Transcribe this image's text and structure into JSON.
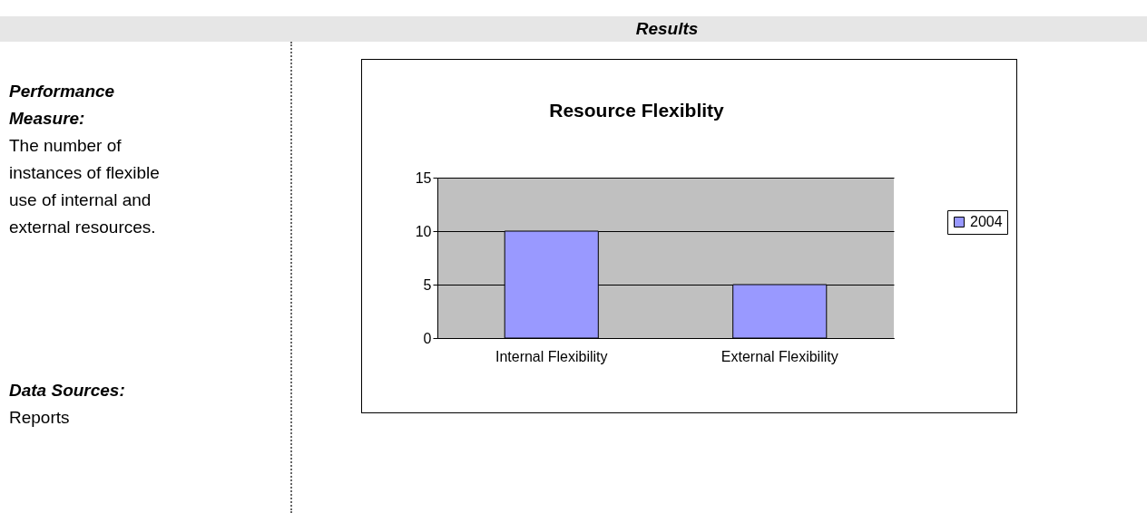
{
  "chart_data": {
    "type": "bar",
    "title": "Resource Flexiblity",
    "categories": [
      "Internal Flexibility",
      "External Flexibility"
    ],
    "series": [
      {
        "name": "2004",
        "color": "#9999ff",
        "values": [
          10,
          5
        ]
      }
    ],
    "ylim": [
      0,
      15
    ],
    "yticks": [
      0,
      5,
      10,
      15
    ],
    "grid": "y",
    "legend": "right",
    "annotations": [
      "Results",
      "Performance Measure:",
      "The number of instances of flexible use of internal and external resources.",
      "Data Sources:",
      "Reports"
    ]
  }
}
